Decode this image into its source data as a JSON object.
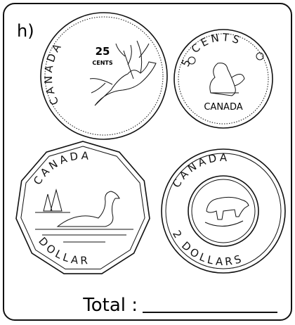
{
  "label": "h)",
  "coins": [
    {
      "value_text": "25",
      "unit": "CENTS",
      "country": "CANADA"
    },
    {
      "unit": "5 CENTS",
      "country": "CANADA"
    },
    {
      "country": "CANADA",
      "unit": "DOLLAR"
    },
    {
      "country": "CANADA",
      "unit": "2 DOLLARS"
    }
  ],
  "total_label": "Total :"
}
